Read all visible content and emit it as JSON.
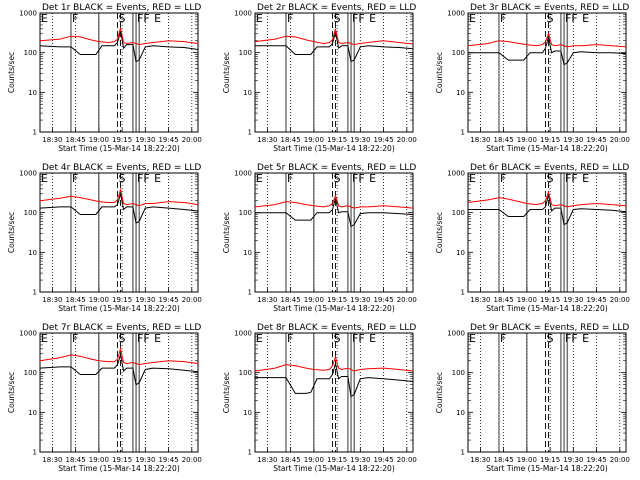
{
  "colors": {
    "events": "#000000",
    "lld": "#ff0000",
    "axes": "#000000",
    "background": "#ffffff"
  },
  "common": {
    "xlabel": "Start Time (15-Mar-14 18:22:20)",
    "ylabel": "Counts/sec",
    "xticks": [
      "18:30",
      "18:45",
      "19:00",
      "19:15",
      "19:30",
      "19:45",
      "20:00"
    ],
    "yticks": [
      "1",
      "10",
      "100",
      "1000"
    ],
    "flags": [
      "E",
      "F",
      "S",
      "FF",
      "E"
    ]
  },
  "chart_data": [
    {
      "type": "line",
      "title": "Det 1r BLACK = Events, RED = LLD",
      "xlabel": "Start Time (15-Mar-14 18:22:20)",
      "ylabel": "Counts/sec",
      "ylim": [
        1,
        1000
      ],
      "log_y": true,
      "xlim": [
        "18:22",
        "20:04"
      ],
      "series": [
        {
          "name": "BLACK = Events",
          "color": "black",
          "x": [
            "18:22",
            "18:35",
            "18:42",
            "18:48",
            "18:55",
            "18:58",
            "19:02",
            "19:06",
            "19:10",
            "19:12",
            "19:14",
            "19:16",
            "19:18",
            "19:22",
            "19:24",
            "19:26",
            "19:30",
            "19:35",
            "19:45",
            "19:55",
            "20:04"
          ],
          "values": [
            150,
            140,
            140,
            90,
            90,
            90,
            150,
            150,
            150,
            180,
            350,
            130,
            160,
            160,
            60,
            65,
            140,
            150,
            140,
            135,
            120
          ]
        },
        {
          "name": "RED = LLD",
          "color": "red",
          "x": [
            "18:22",
            "18:35",
            "18:42",
            "18:48",
            "18:55",
            "19:00",
            "19:06",
            "19:10",
            "19:12",
            "19:14",
            "19:16",
            "19:18",
            "19:22",
            "19:26",
            "19:30",
            "19:35",
            "19:45",
            "19:55",
            "20:04"
          ],
          "values": [
            200,
            220,
            260,
            250,
            210,
            190,
            180,
            190,
            220,
            420,
            180,
            170,
            180,
            160,
            170,
            180,
            200,
            190,
            170
          ]
        }
      ]
    },
    {
      "type": "line",
      "title": "Det 2r BLACK = Events, RED = LLD",
      "xlabel": "Start Time (15-Mar-14 18:22:20)",
      "ylabel": "Counts/sec",
      "ylim": [
        1,
        1000
      ],
      "log_y": true,
      "xlim": [
        "18:22",
        "20:04"
      ],
      "series": [
        {
          "name": "BLACK = Events",
          "color": "black",
          "x": [
            "18:22",
            "18:35",
            "18:42",
            "18:48",
            "18:55",
            "18:58",
            "19:02",
            "19:06",
            "19:10",
            "19:12",
            "19:14",
            "19:16",
            "19:18",
            "19:22",
            "19:24",
            "19:26",
            "19:30",
            "19:35",
            "19:45",
            "19:55",
            "20:04"
          ],
          "values": [
            150,
            150,
            150,
            90,
            90,
            90,
            140,
            140,
            140,
            170,
            330,
            130,
            150,
            150,
            60,
            65,
            140,
            150,
            140,
            135,
            125
          ]
        },
        {
          "name": "RED = LLD",
          "color": "red",
          "x": [
            "18:22",
            "18:35",
            "18:42",
            "18:48",
            "18:55",
            "19:00",
            "19:06",
            "19:10",
            "19:12",
            "19:14",
            "19:16",
            "19:18",
            "19:22",
            "19:26",
            "19:30",
            "19:35",
            "19:45",
            "19:55",
            "20:04"
          ],
          "values": [
            190,
            220,
            260,
            250,
            210,
            190,
            170,
            180,
            210,
            400,
            180,
            170,
            180,
            160,
            170,
            180,
            200,
            180,
            165
          ]
        }
      ]
    },
    {
      "type": "line",
      "title": "Det 3r BLACK = Events, RED = LLD",
      "xlabel": "Start Time (15-Mar-14 18:22:20)",
      "ylabel": "Counts/sec",
      "ylim": [
        1,
        1000
      ],
      "log_y": true,
      "xlim": [
        "18:22",
        "20:04"
      ],
      "series": [
        {
          "name": "BLACK = Events",
          "color": "black",
          "x": [
            "18:22",
            "18:35",
            "18:42",
            "18:48",
            "18:55",
            "18:58",
            "19:02",
            "19:06",
            "19:10",
            "19:12",
            "19:14",
            "19:16",
            "19:18",
            "19:22",
            "19:24",
            "19:26",
            "19:30",
            "19:35",
            "19:45",
            "19:55",
            "20:04"
          ],
          "values": [
            100,
            100,
            100,
            65,
            65,
            65,
            100,
            100,
            100,
            130,
            250,
            100,
            110,
            110,
            50,
            55,
            100,
            105,
            100,
            100,
            95
          ]
        },
        {
          "name": "RED = LLD",
          "color": "red",
          "x": [
            "18:22",
            "18:35",
            "18:42",
            "18:48",
            "18:55",
            "19:00",
            "19:06",
            "19:10",
            "19:12",
            "19:14",
            "19:16",
            "19:18",
            "19:22",
            "19:26",
            "19:30",
            "19:35",
            "19:45",
            "19:55",
            "20:04"
          ],
          "values": [
            150,
            170,
            200,
            190,
            170,
            160,
            150,
            160,
            190,
            300,
            160,
            150,
            160,
            140,
            150,
            150,
            160,
            150,
            140
          ]
        }
      ]
    },
    {
      "type": "line",
      "title": "Det 4r BLACK = Events, RED = LLD",
      "xlabel": "Start Time (15-Mar-14 18:22:20)",
      "ylabel": "Counts/sec",
      "ylim": [
        1,
        1000
      ],
      "log_y": true,
      "xlim": [
        "18:22",
        "20:04"
      ],
      "series": [
        {
          "name": "BLACK = Events",
          "color": "black",
          "x": [
            "18:22",
            "18:35",
            "18:42",
            "18:48",
            "18:55",
            "18:58",
            "19:02",
            "19:06",
            "19:10",
            "19:12",
            "19:14",
            "19:16",
            "19:18",
            "19:22",
            "19:24",
            "19:26",
            "19:30",
            "19:35",
            "19:45",
            "19:55",
            "20:04"
          ],
          "values": [
            130,
            140,
            140,
            90,
            90,
            90,
            140,
            140,
            140,
            160,
            300,
            120,
            140,
            140,
            55,
            60,
            130,
            140,
            130,
            120,
            110
          ]
        },
        {
          "name": "RED = LLD",
          "color": "red",
          "x": [
            "18:22",
            "18:35",
            "18:42",
            "18:48",
            "18:55",
            "19:00",
            "19:06",
            "19:10",
            "19:12",
            "19:14",
            "19:16",
            "19:18",
            "19:22",
            "19:26",
            "19:30",
            "19:35",
            "19:45",
            "19:55",
            "20:04"
          ],
          "values": [
            200,
            230,
            260,
            240,
            210,
            190,
            180,
            180,
            210,
            380,
            170,
            160,
            170,
            150,
            170,
            170,
            190,
            180,
            160
          ]
        }
      ]
    },
    {
      "type": "line",
      "title": "Det 5r BLACK = Events, RED = LLD",
      "xlabel": "Start Time (15-Mar-14 18:22:20)",
      "ylabel": "Counts/sec",
      "ylim": [
        1,
        1000
      ],
      "log_y": true,
      "xlim": [
        "18:22",
        "20:04"
      ],
      "series": [
        {
          "name": "BLACK = Events",
          "color": "black",
          "x": [
            "18:22",
            "18:35",
            "18:42",
            "18:48",
            "18:55",
            "18:58",
            "19:02",
            "19:06",
            "19:10",
            "19:12",
            "19:14",
            "19:16",
            "19:18",
            "19:22",
            "19:24",
            "19:26",
            "19:30",
            "19:35",
            "19:45",
            "19:55",
            "20:04"
          ],
          "values": [
            100,
            100,
            100,
            65,
            65,
            65,
            100,
            100,
            100,
            120,
            230,
            100,
            105,
            105,
            45,
            50,
            95,
            100,
            100,
            95,
            90
          ]
        },
        {
          "name": "RED = LLD",
          "color": "red",
          "x": [
            "18:22",
            "18:35",
            "18:42",
            "18:48",
            "18:55",
            "19:00",
            "19:06",
            "19:10",
            "19:12",
            "19:14",
            "19:16",
            "19:18",
            "19:22",
            "19:26",
            "19:30",
            "19:35",
            "19:45",
            "19:55",
            "20:04"
          ],
          "values": [
            140,
            160,
            190,
            180,
            160,
            150,
            140,
            150,
            170,
            270,
            150,
            140,
            150,
            130,
            140,
            140,
            150,
            140,
            130
          ]
        }
      ]
    },
    {
      "type": "line",
      "title": "Det 6r BLACK = Events, RED = LLD",
      "xlabel": "Start Time (15-Mar-14 18:22:20)",
      "ylabel": "Counts/sec",
      "ylim": [
        1,
        1000
      ],
      "log_y": true,
      "xlim": [
        "18:22",
        "20:04"
      ],
      "series": [
        {
          "name": "BLACK = Events",
          "color": "black",
          "x": [
            "18:22",
            "18:35",
            "18:42",
            "18:48",
            "18:55",
            "18:58",
            "19:02",
            "19:06",
            "19:10",
            "19:12",
            "19:14",
            "19:16",
            "19:18",
            "19:22",
            "19:24",
            "19:26",
            "19:30",
            "19:35",
            "19:45",
            "19:55",
            "20:04"
          ],
          "values": [
            120,
            120,
            120,
            80,
            80,
            80,
            120,
            120,
            120,
            140,
            280,
            110,
            130,
            130,
            50,
            55,
            120,
            125,
            120,
            115,
            105
          ]
        },
        {
          "name": "RED = LLD",
          "color": "red",
          "x": [
            "18:22",
            "18:35",
            "18:42",
            "18:48",
            "18:55",
            "19:00",
            "19:06",
            "19:10",
            "19:12",
            "19:14",
            "19:16",
            "19:18",
            "19:22",
            "19:26",
            "19:30",
            "19:35",
            "19:45",
            "19:55",
            "20:04"
          ],
          "values": [
            180,
            210,
            240,
            220,
            190,
            170,
            160,
            170,
            200,
            330,
            160,
            150,
            160,
            140,
            150,
            160,
            170,
            160,
            150
          ]
        }
      ]
    },
    {
      "type": "line",
      "title": "Det 7r BLACK = Events, RED = LLD",
      "xlabel": "Start Time (15-Mar-14 18:22:20)",
      "ylabel": "Counts/sec",
      "ylim": [
        1,
        1000
      ],
      "log_y": true,
      "xlim": [
        "18:22",
        "20:04"
      ],
      "series": [
        {
          "name": "BLACK = Events",
          "color": "black",
          "x": [
            "18:22",
            "18:35",
            "18:42",
            "18:48",
            "18:55",
            "18:58",
            "19:02",
            "19:06",
            "19:10",
            "19:12",
            "19:14",
            "19:16",
            "19:18",
            "19:22",
            "19:24",
            "19:26",
            "19:30",
            "19:35",
            "19:45",
            "19:55",
            "20:04"
          ],
          "values": [
            130,
            140,
            140,
            90,
            90,
            90,
            130,
            130,
            130,
            160,
            280,
            110,
            130,
            130,
            50,
            55,
            120,
            130,
            125,
            115,
            105
          ]
        },
        {
          "name": "RED = LLD",
          "color": "red",
          "x": [
            "18:22",
            "18:35",
            "18:42",
            "18:48",
            "18:55",
            "19:00",
            "19:06",
            "19:10",
            "19:12",
            "19:14",
            "19:16",
            "19:18",
            "19:22",
            "19:26",
            "19:30",
            "19:35",
            "19:45",
            "19:55",
            "20:04"
          ],
          "values": [
            200,
            240,
            280,
            260,
            220,
            200,
            190,
            190,
            220,
            400,
            180,
            170,
            180,
            160,
            170,
            180,
            200,
            190,
            170
          ]
        }
      ]
    },
    {
      "type": "line",
      "title": "Det 8r BLACK = Events, RED = LLD",
      "xlabel": "Start Time (15-Mar-14 18:22:20)",
      "ylabel": "Counts/sec",
      "ylim": [
        1,
        1000
      ],
      "log_y": true,
      "xlim": [
        "18:22",
        "20:04"
      ],
      "series": [
        {
          "name": "BLACK = Events",
          "color": "black",
          "x": [
            "18:22",
            "18:35",
            "18:42",
            "18:48",
            "18:55",
            "18:58",
            "19:02",
            "19:06",
            "19:10",
            "19:12",
            "19:14",
            "19:16",
            "19:18",
            "19:22",
            "19:24",
            "19:26",
            "19:30",
            "19:35",
            "19:45",
            "19:55",
            "20:04"
          ],
          "values": [
            75,
            75,
            75,
            30,
            30,
            32,
            70,
            70,
            70,
            90,
            170,
            70,
            80,
            80,
            25,
            28,
            70,
            75,
            70,
            65,
            60
          ]
        },
        {
          "name": "RED = LLD",
          "color": "red",
          "x": [
            "18:22",
            "18:35",
            "18:42",
            "18:48",
            "18:55",
            "19:00",
            "19:06",
            "19:10",
            "19:12",
            "19:14",
            "19:16",
            "19:18",
            "19:22",
            "19:26",
            "19:30",
            "19:35",
            "19:45",
            "19:55",
            "20:04"
          ],
          "values": [
            110,
            130,
            160,
            150,
            130,
            120,
            115,
            120,
            150,
            250,
            130,
            120,
            130,
            110,
            120,
            125,
            130,
            120,
            110
          ]
        }
      ]
    },
    {
      "type": "line",
      "title": "Det 9r BLACK = Events, RED = LLD",
      "xlabel": "Start Time (15-Mar-14 18:22:20)",
      "ylabel": "Counts/sec",
      "ylim": [
        1,
        1000
      ],
      "log_y": true,
      "xlim": [
        "18:22",
        "20:04"
      ],
      "series": []
    }
  ]
}
